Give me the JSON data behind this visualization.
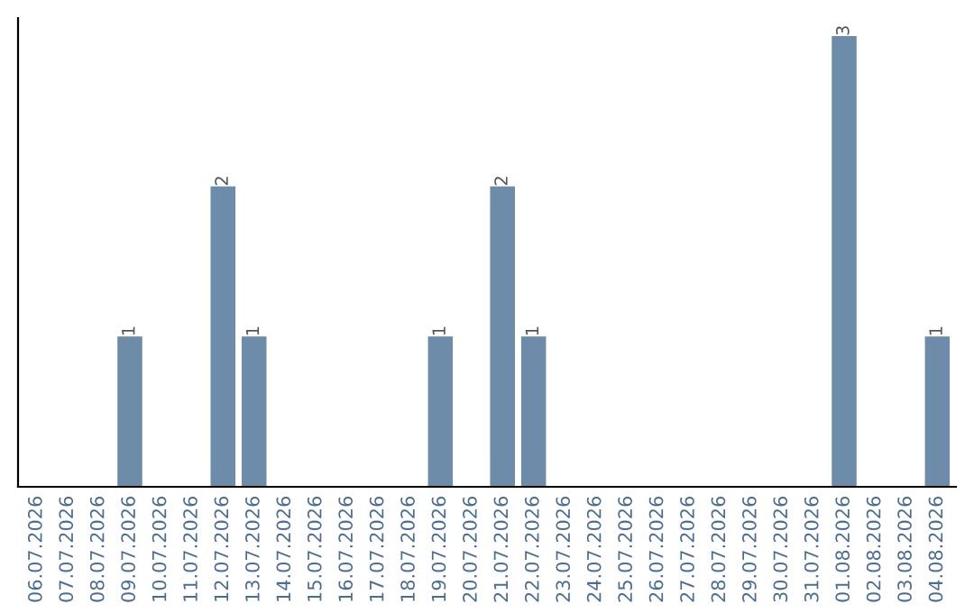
{
  "chart_data": {
    "type": "bar",
    "categories": [
      "06.07.2026",
      "07.07.2026",
      "08.07.2026",
      "09.07.2026",
      "10.07.2026",
      "11.07.2026",
      "12.07.2026",
      "13.07.2026",
      "14.07.2026",
      "15.07.2026",
      "16.07.2026",
      "17.07.2026",
      "18.07.2026",
      "19.07.2026",
      "20.07.2026",
      "21.07.2026",
      "22.07.2026",
      "23.07.2026",
      "24.07.2026",
      "25.07.2026",
      "26.07.2026",
      "27.07.2026",
      "28.07.2026",
      "29.07.2026",
      "30.07.2026",
      "31.07.2026",
      "01.08.2026",
      "02.08.2026",
      "03.08.2026",
      "04.08.2026"
    ],
    "values": [
      0,
      0,
      0,
      1,
      0,
      0,
      2,
      1,
      0,
      0,
      0,
      0,
      0,
      1,
      0,
      2,
      1,
      0,
      0,
      0,
      0,
      0,
      0,
      0,
      0,
      0,
      3,
      0,
      0,
      1
    ],
    "value_labels": [
      null,
      null,
      null,
      "1",
      null,
      null,
      "2",
      "1",
      null,
      null,
      null,
      null,
      null,
      "1",
      null,
      "2",
      "1",
      null,
      null,
      null,
      null,
      null,
      null,
      null,
      null,
      null,
      "3",
      null,
      null,
      "1"
    ],
    "color": "#6d8caa",
    "grid": false,
    "legend": false
  }
}
